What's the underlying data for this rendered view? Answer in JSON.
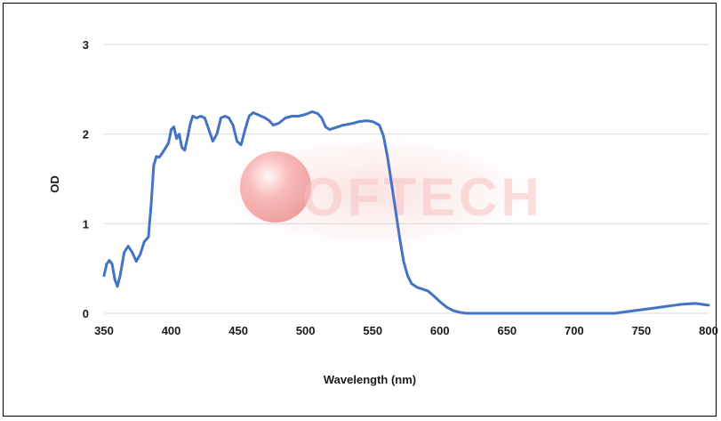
{
  "chart_data": {
    "type": "line",
    "xlabel": "Wavelength (nm)",
    "ylabel": "OD",
    "xlim": [
      350,
      800
    ],
    "ylim": [
      0,
      3
    ],
    "x_ticks": [
      350,
      400,
      450,
      500,
      550,
      600,
      650,
      700,
      750,
      800
    ],
    "y_ticks": [
      0,
      1,
      2,
      3
    ],
    "grid": "horizontal",
    "series": [
      {
        "color": "#4472c4",
        "points": [
          [
            350,
            0.42
          ],
          [
            352,
            0.55
          ],
          [
            354,
            0.59
          ],
          [
            356,
            0.55
          ],
          [
            358,
            0.38
          ],
          [
            360,
            0.3
          ],
          [
            362,
            0.42
          ],
          [
            365,
            0.68
          ],
          [
            368,
            0.75
          ],
          [
            371,
            0.68
          ],
          [
            374,
            0.58
          ],
          [
            377,
            0.66
          ],
          [
            380,
            0.8
          ],
          [
            383,
            0.85
          ],
          [
            385,
            1.2
          ],
          [
            387,
            1.65
          ],
          [
            389,
            1.75
          ],
          [
            391,
            1.74
          ],
          [
            393,
            1.78
          ],
          [
            396,
            1.85
          ],
          [
            398,
            1.9
          ],
          [
            400,
            2.05
          ],
          [
            402,
            2.08
          ],
          [
            404,
            1.95
          ],
          [
            406,
            2.0
          ],
          [
            408,
            1.85
          ],
          [
            410,
            1.82
          ],
          [
            412,
            1.95
          ],
          [
            414,
            2.1
          ],
          [
            416,
            2.2
          ],
          [
            419,
            2.18
          ],
          [
            422,
            2.2
          ],
          [
            425,
            2.18
          ],
          [
            428,
            2.05
          ],
          [
            431,
            1.92
          ],
          [
            434,
            2.0
          ],
          [
            437,
            2.18
          ],
          [
            440,
            2.2
          ],
          [
            443,
            2.18
          ],
          [
            446,
            2.1
          ],
          [
            449,
            1.92
          ],
          [
            452,
            1.88
          ],
          [
            455,
            2.05
          ],
          [
            458,
            2.2
          ],
          [
            461,
            2.24
          ],
          [
            464,
            2.22
          ],
          [
            467,
            2.2
          ],
          [
            470,
            2.18
          ],
          [
            473,
            2.15
          ],
          [
            476,
            2.1
          ],
          [
            480,
            2.12
          ],
          [
            485,
            2.18
          ],
          [
            490,
            2.2
          ],
          [
            495,
            2.2
          ],
          [
            500,
            2.22
          ],
          [
            505,
            2.25
          ],
          [
            509,
            2.23
          ],
          [
            512,
            2.18
          ],
          [
            515,
            2.08
          ],
          [
            518,
            2.05
          ],
          [
            522,
            2.07
          ],
          [
            528,
            2.1
          ],
          [
            535,
            2.12
          ],
          [
            540,
            2.14
          ],
          [
            545,
            2.15
          ],
          [
            550,
            2.14
          ],
          [
            555,
            2.1
          ],
          [
            558,
            1.98
          ],
          [
            561,
            1.75
          ],
          [
            564,
            1.45
          ],
          [
            567,
            1.15
          ],
          [
            570,
            0.85
          ],
          [
            573,
            0.58
          ],
          [
            576,
            0.42
          ],
          [
            579,
            0.33
          ],
          [
            583,
            0.29
          ],
          [
            587,
            0.27
          ],
          [
            591,
            0.25
          ],
          [
            595,
            0.2
          ],
          [
            600,
            0.13
          ],
          [
            605,
            0.07
          ],
          [
            610,
            0.03
          ],
          [
            615,
            0.01
          ],
          [
            620,
            0.0
          ],
          [
            650,
            0.0
          ],
          [
            700,
            0.0
          ],
          [
            730,
            0.0
          ],
          [
            740,
            0.02
          ],
          [
            750,
            0.04
          ],
          [
            760,
            0.06
          ],
          [
            770,
            0.08
          ],
          [
            780,
            0.1
          ],
          [
            790,
            0.11
          ],
          [
            795,
            0.1
          ],
          [
            800,
            0.09
          ]
        ]
      }
    ]
  },
  "watermark": {
    "brand": "OFTECH"
  }
}
